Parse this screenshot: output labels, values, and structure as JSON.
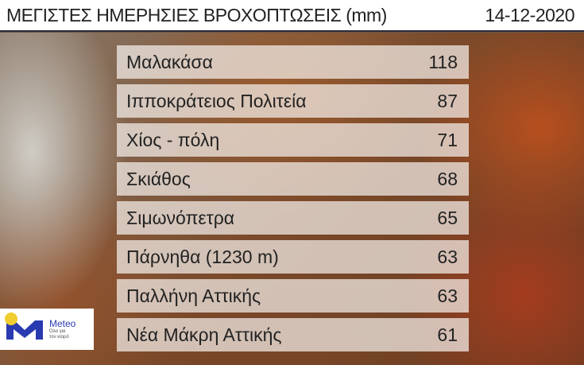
{
  "header": {
    "title": "ΜΕΓΙΣΤΕΣ ΗΜΕΡΗΣΙΕΣ ΒΡΟΧΟΠΤΩΣΕΙΣ (mm)",
    "date": "14-12-2020"
  },
  "table": {
    "rows": [
      {
        "station": "Μαλακάσα",
        "value": "118"
      },
      {
        "station": "Ιπποκράτειος Πολιτεία",
        "value": "87"
      },
      {
        "station": "Χίος - πόλη",
        "value": "71"
      },
      {
        "station": "Σκιάθος",
        "value": "68"
      },
      {
        "station": "Σιμωνόπετρα",
        "value": "65"
      },
      {
        "station": "Πάρνηθα (1230 m)",
        "value": "63"
      },
      {
        "station": "Παλλήνη Αττικής",
        "value": "63"
      },
      {
        "station": "Νέα Μάκρη Αττικής",
        "value": "61"
      }
    ]
  },
  "logo": {
    "name": "Meteo",
    "tagline1": "Όλα για",
    "tagline2": "τον καιρό",
    "brand_color": "#2a3ab0",
    "sun_color": "#f0cd30"
  }
}
